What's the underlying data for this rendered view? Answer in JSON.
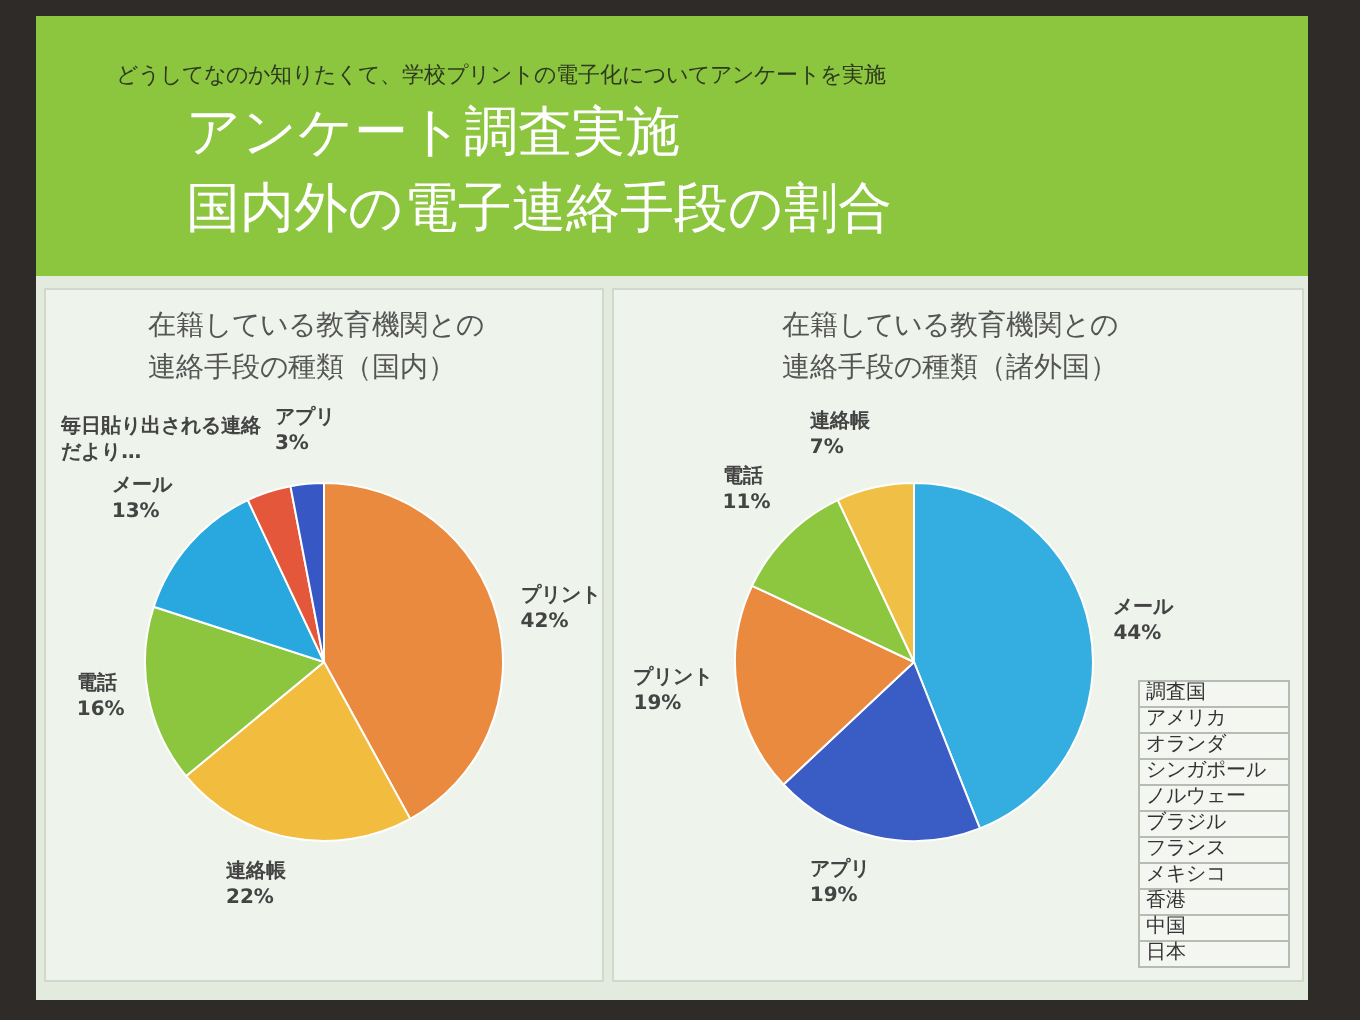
{
  "chart_data": [
    {
      "type": "other",
      "title": "アンケート調査実施",
      "subtitle": "国内外の電子連絡手段の割合",
      "annotations": [
        "どうしてなのか知りたくて、学校プリントの電子化についてアンケートを実施"
      ]
    },
    {
      "type": "pie",
      "title": "在籍している教育機関との連絡手段の種類（国内）",
      "categories": [
        "プリント",
        "連絡帳",
        "電話",
        "メール",
        "毎日貼り出される連絡だより…",
        "アプリ"
      ],
      "values": [
        42,
        22,
        16,
        13,
        4,
        3
      ],
      "colors": [
        "#ea8a3e",
        "#f2bd3e",
        "#8cc63f",
        "#29a8df",
        "#e5573a",
        "#3757c4"
      ],
      "value_labels": [
        "42%",
        "22%",
        "16%",
        "13%",
        null,
        "3%"
      ]
    },
    {
      "type": "pie",
      "title": "在籍している教育機関との連絡手段の種類（諸外国）",
      "categories": [
        "メール",
        "アプリ",
        "プリント",
        "電話",
        "連絡帳"
      ],
      "values": [
        44,
        19,
        19,
        11,
        7
      ],
      "colors": [
        "#34ade0",
        "#3a5cc5",
        "#ea8a3e",
        "#8dc63f",
        "#f0bf45"
      ],
      "value_labels": [
        "44%",
        "19%",
        "19%",
        "11%",
        "7%"
      ],
      "annotations": [
        "調査国",
        "アメリカ",
        "オランダ",
        "シンガポール",
        "ノルウェー",
        "ブラジル",
        "フランス",
        "メキシコ",
        "香港",
        "中国",
        "日本"
      ]
    }
  ]
}
